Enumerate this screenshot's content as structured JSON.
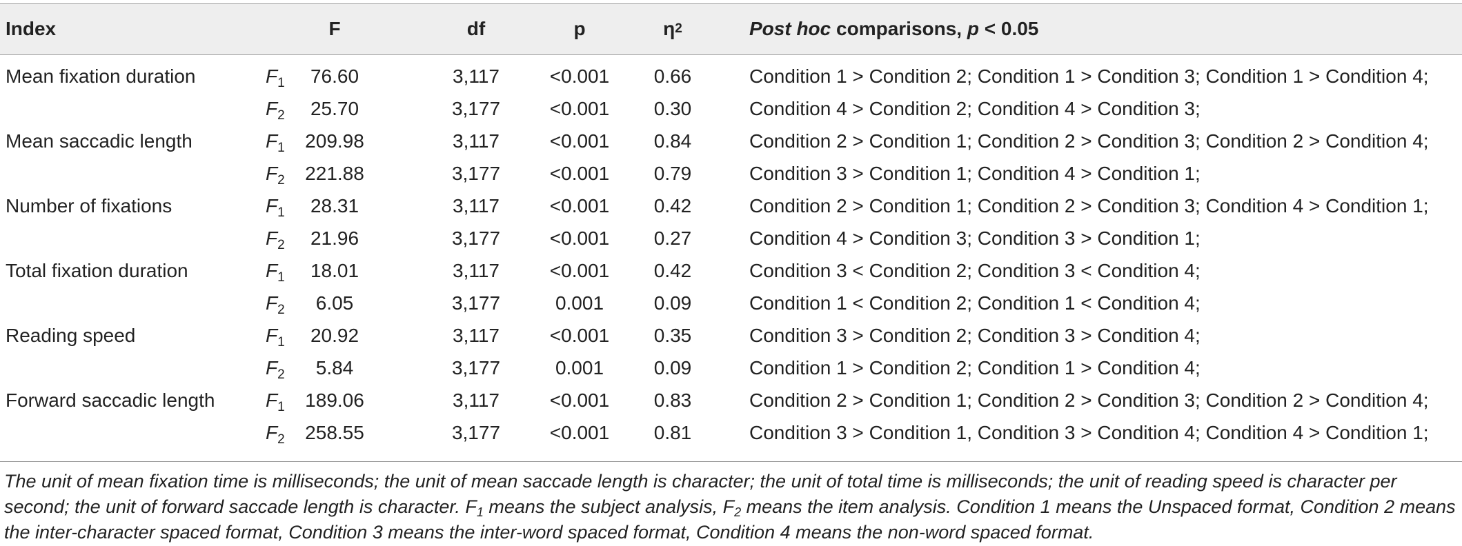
{
  "header": {
    "index": "Index",
    "F": "F",
    "df": "df",
    "p": "p",
    "eta_base": "η",
    "eta_sup": "2",
    "posthoc_italic": "Post hoc",
    "posthoc_rest": " comparisons, ",
    "posthoc_p": "p",
    "posthoc_tail": " < 0.05"
  },
  "rows": [
    {
      "index": "Mean fixation duration",
      "factor": "F",
      "factor_sub": "1",
      "F": "76.60",
      "df": "3,117",
      "p": "<0.001",
      "eta2": "0.66",
      "posthoc": "Condition 1 > Condition 2; Condition 1 > Condition 3; Condition 1 > Condition 4;"
    },
    {
      "index": "",
      "factor": "F",
      "factor_sub": "2",
      "F": "25.70",
      "df": "3,177",
      "p": "<0.001",
      "eta2": "0.30",
      "posthoc": "Condition 4 > Condition 2; Condition 4 > Condition 3;"
    },
    {
      "index": "Mean saccadic length",
      "factor": "F",
      "factor_sub": "1",
      "F": "209.98",
      "df": "3,117",
      "p": "<0.001",
      "eta2": "0.84",
      "posthoc": "Condition 2 > Condition 1; Condition 2 > Condition 3; Condition 2 > Condition 4;"
    },
    {
      "index": "",
      "factor": "F",
      "factor_sub": "2",
      "F": "221.88",
      "df": "3,177",
      "p": "<0.001",
      "eta2": "0.79",
      "posthoc": "Condition 3 > Condition 1; Condition 4 > Condition 1;"
    },
    {
      "index": "Number of fixations",
      "factor": "F",
      "factor_sub": "1",
      "F": "28.31",
      "df": "3,117",
      "p": "<0.001",
      "eta2": "0.42",
      "posthoc": "Condition 2 > Condition 1; Condition 2 > Condition 3; Condition 4 > Condition 1;"
    },
    {
      "index": "",
      "factor": "F",
      "factor_sub": "2",
      "F": "21.96",
      "df": "3,177",
      "p": "<0.001",
      "eta2": "0.27",
      "posthoc": "Condition 4 > Condition 3; Condition 3 > Condition 1;"
    },
    {
      "index": "Total fixation duration",
      "factor": "F",
      "factor_sub": "1",
      "F": "18.01",
      "df": "3,117",
      "p": "<0.001",
      "eta2": "0.42",
      "posthoc": "Condition 3 < Condition 2; Condition 3 < Condition 4;"
    },
    {
      "index": "",
      "factor": "F",
      "factor_sub": "2",
      "F": "6.05",
      "df": "3,177",
      "p": "0.001",
      "eta2": "0.09",
      "posthoc": "Condition 1 < Condition 2; Condition 1 < Condition 4;"
    },
    {
      "index": "Reading speed",
      "factor": "F",
      "factor_sub": "1",
      "F": "20.92",
      "df": "3,117",
      "p": "<0.001",
      "eta2": "0.35",
      "posthoc": "Condition 3 > Condition 2; Condition 3 > Condition 4;"
    },
    {
      "index": "",
      "factor": "F",
      "factor_sub": "2",
      "F": "5.84",
      "df": "3,177",
      "p": "0.001",
      "eta2": "0.09",
      "posthoc": "Condition 1 > Condition 2; Condition 1 > Condition 4;"
    },
    {
      "index": "Forward saccadic length",
      "factor": "F",
      "factor_sub": "1",
      "F": "189.06",
      "df": "3,117",
      "p": "<0.001",
      "eta2": "0.83",
      "posthoc": "Condition 2 > Condition 1; Condition 2 > Condition 3; Condition 2 > Condition 4;"
    },
    {
      "index": "",
      "factor": "F",
      "factor_sub": "2",
      "F": "258.55",
      "df": "3,177",
      "p": "<0.001",
      "eta2": "0.81",
      "posthoc": "Condition 3 > Condition 1, Condition 3 > Condition 4; Condition 4 > Condition 1;"
    }
  ],
  "footnote": {
    "part1": "The unit of mean fixation time is milliseconds; the unit of mean saccade length is character; the unit of total time is milliseconds; the unit of reading speed is character per second; the unit of forward saccade length is character. F",
    "sub1": "1",
    "part2": " means the subject analysis, F",
    "sub2": "2",
    "part3": " means the item analysis. Condition 1 means the Unspaced format, Condition 2 means the inter-character spaced format, Condition 3 means the inter-word spaced format, Condition 4 means the non-word spaced format."
  }
}
